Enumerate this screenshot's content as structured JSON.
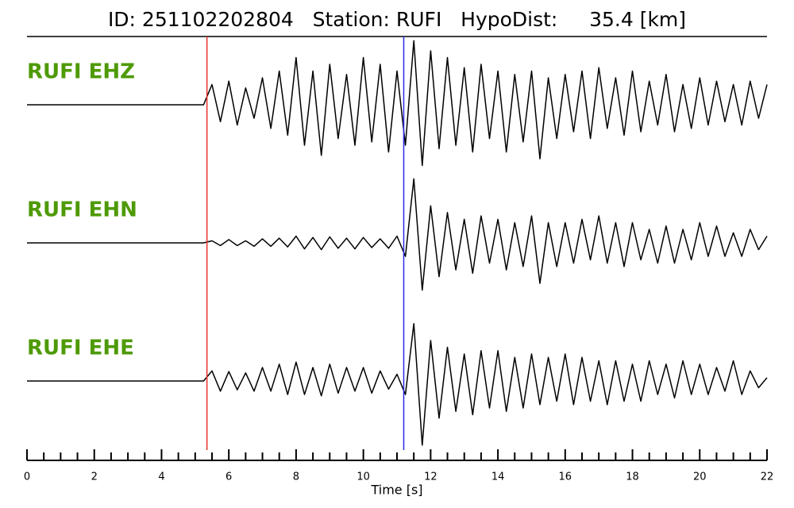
{
  "chart_data": {
    "type": "line",
    "title": "ID: 251102202804   Station: RUFI   HypoDist:     35.4 [km]",
    "xlabel": "Time [s]",
    "xlim": [
      0,
      22
    ],
    "xticks": [
      0,
      2,
      4,
      6,
      8,
      10,
      12,
      14,
      16,
      18,
      20,
      22
    ],
    "xticks_minor": [
      0.5,
      1,
      1.5,
      2.5,
      3,
      3.5,
      4.5,
      5,
      5.5,
      6.5,
      7,
      7.5,
      8.5,
      9,
      9.5,
      10.5,
      11,
      11.5,
      12.5,
      13,
      13.5,
      14.5,
      15,
      15.5,
      16.5,
      17,
      17.5,
      18.5,
      19,
      19.5,
      20.5,
      21,
      21.5
    ],
    "ylim": [
      -1,
      1
    ],
    "picks": [
      {
        "x": 5.35,
        "color": "#e8332a"
      },
      {
        "x": 11.2,
        "color": "#2a2ae8"
      }
    ],
    "label_color": "#4e9a06",
    "x": [
      0,
      0.25,
      0.5,
      0.75,
      1,
      1.25,
      1.5,
      1.75,
      2,
      2.25,
      2.5,
      2.75,
      3,
      3.25,
      3.5,
      3.75,
      4,
      4.25,
      4.5,
      4.75,
      5,
      5.25,
      5.5,
      5.75,
      6,
      6.25,
      6.5,
      6.75,
      7,
      7.25,
      7.5,
      7.75,
      8,
      8.25,
      8.5,
      8.75,
      9,
      9.25,
      9.5,
      9.75,
      10,
      10.25,
      10.5,
      10.75,
      11,
      11.25,
      11.5,
      11.75,
      12,
      12.25,
      12.5,
      12.75,
      13,
      13.25,
      13.5,
      13.75,
      14,
      14.25,
      14.5,
      14.75,
      15,
      15.25,
      15.5,
      15.75,
      16,
      16.25,
      16.5,
      16.75,
      17,
      17.25,
      17.5,
      17.75,
      18,
      18.25,
      18.5,
      18.75,
      19,
      19.25,
      19.5,
      19.75,
      20,
      20.25,
      20.5,
      20.75,
      21,
      21.25,
      21.5,
      21.75,
      22
    ],
    "series": [
      {
        "name": "RUFI EHZ",
        "color": "#000000",
        "values": [
          0,
          0,
          0,
          0,
          0,
          0,
          0,
          0,
          0,
          0,
          0,
          0,
          0,
          0,
          0,
          0,
          0,
          0,
          0,
          0,
          0,
          0,
          0.3,
          -0.25,
          0.35,
          -0.3,
          0.25,
          -0.2,
          0.4,
          -0.35,
          0.5,
          -0.45,
          0.7,
          -0.6,
          0.5,
          -0.75,
          0.6,
          -0.5,
          0.45,
          -0.6,
          0.7,
          -0.55,
          0.6,
          -0.7,
          0.5,
          -0.6,
          0.95,
          -0.9,
          0.8,
          -0.65,
          0.7,
          -0.6,
          0.55,
          -0.7,
          0.6,
          -0.5,
          0.5,
          -0.7,
          0.45,
          -0.55,
          0.5,
          -0.8,
          0.4,
          -0.5,
          0.45,
          -0.4,
          0.5,
          -0.5,
          0.55,
          -0.35,
          0.4,
          -0.45,
          0.5,
          -0.4,
          0.35,
          -0.3,
          0.45,
          -0.4,
          0.3,
          -0.35,
          0.4,
          -0.3,
          0.35,
          -0.25,
          0.3,
          -0.3,
          0.35,
          -0.2,
          0.3
        ]
      },
      {
        "name": "RUFI EHN",
        "color": "#000000",
        "values": [
          0,
          0,
          0,
          0,
          0,
          0,
          0,
          0,
          0,
          0,
          0,
          0,
          0,
          0,
          0,
          0,
          0,
          0,
          0,
          0,
          0,
          0,
          0.03,
          -0.04,
          0.05,
          -0.04,
          0.03,
          -0.05,
          0.06,
          -0.05,
          0.07,
          -0.06,
          0.1,
          -0.09,
          0.08,
          -0.1,
          0.09,
          -0.08,
          0.07,
          -0.09,
          0.08,
          -0.07,
          0.06,
          -0.08,
          0.1,
          -0.2,
          0.95,
          -0.7,
          0.55,
          -0.5,
          0.45,
          -0.4,
          0.35,
          -0.45,
          0.4,
          -0.3,
          0.35,
          -0.4,
          0.3,
          -0.35,
          0.4,
          -0.6,
          0.3,
          -0.35,
          0.3,
          -0.3,
          0.35,
          -0.25,
          0.4,
          -0.3,
          0.3,
          -0.35,
          0.3,
          -0.25,
          0.2,
          -0.3,
          0.25,
          -0.3,
          0.2,
          -0.25,
          0.3,
          -0.2,
          0.25,
          -0.2,
          0.15,
          -0.2,
          0.2,
          -0.1,
          0.1
        ]
      },
      {
        "name": "RUFI EHE",
        "color": "#000000",
        "values": [
          0,
          0,
          0,
          0,
          0,
          0,
          0,
          0,
          0,
          0,
          0,
          0,
          0,
          0,
          0,
          0,
          0,
          0,
          0,
          0,
          0,
          0,
          0.15,
          -0.15,
          0.14,
          -0.13,
          0.12,
          -0.15,
          0.2,
          -0.15,
          0.25,
          -0.2,
          0.28,
          -0.2,
          0.2,
          -0.22,
          0.25,
          -0.18,
          0.2,
          -0.15,
          0.2,
          -0.18,
          0.15,
          -0.12,
          0.1,
          -0.2,
          0.85,
          -0.95,
          0.6,
          -0.55,
          0.5,
          -0.45,
          0.4,
          -0.5,
          0.45,
          -0.4,
          0.45,
          -0.45,
          0.35,
          -0.4,
          0.4,
          -0.35,
          0.35,
          -0.3,
          0.4,
          -0.35,
          0.35,
          -0.3,
          0.3,
          -0.35,
          0.3,
          -0.3,
          0.25,
          -0.3,
          0.3,
          -0.2,
          0.25,
          -0.25,
          0.3,
          -0.2,
          0.25,
          -0.2,
          0.2,
          -0.15,
          0.3,
          -0.2,
          0.15,
          -0.1,
          0.05
        ]
      }
    ]
  }
}
